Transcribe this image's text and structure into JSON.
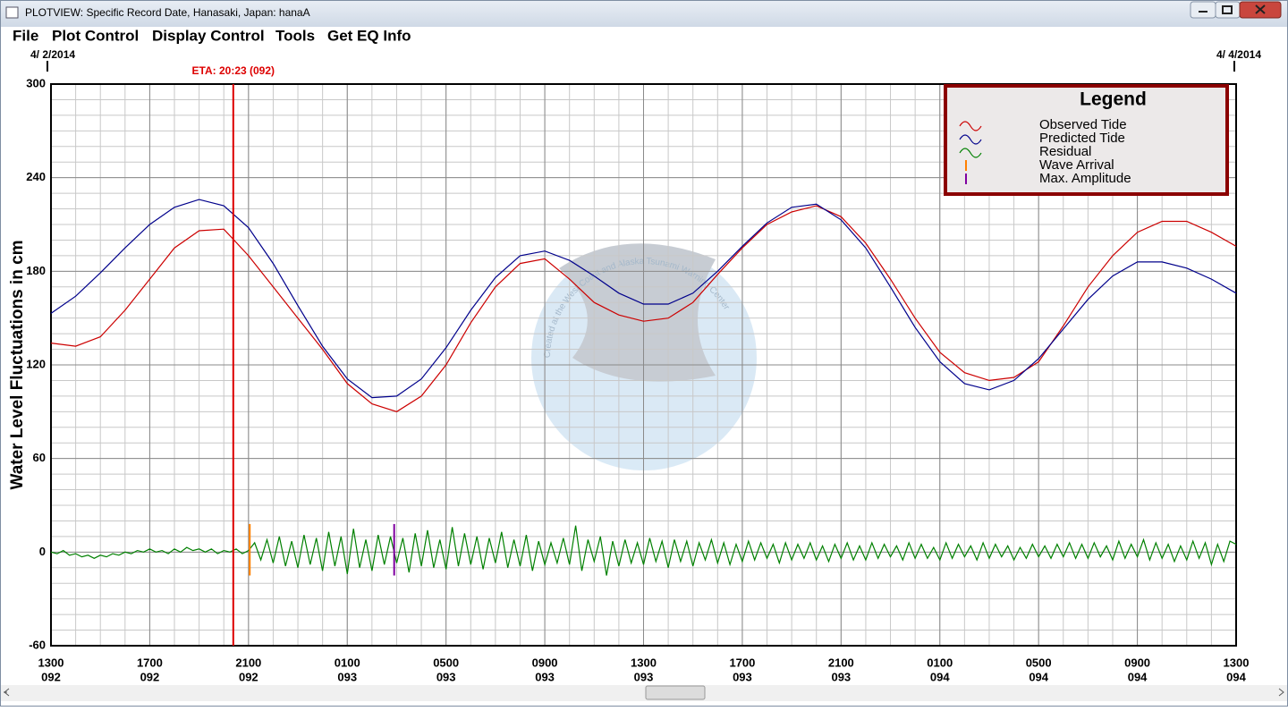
{
  "window": {
    "title": "PLOTVIEW: Specific Record Date, Hanasaki, Japan: hanaA",
    "menu": [
      "File",
      "Plot Control",
      "Display Control",
      "Tools",
      "Get EQ Info"
    ]
  },
  "chart_data": {
    "type": "line",
    "ylabel": "Water Level Fluctuations in cm",
    "date_labels": [
      "4/ 2/2014",
      "4/ 4/2014"
    ],
    "watermark": "Created at the West Coast and Alaska Tsunami Warning Center",
    "xlim": [
      0,
      48
    ],
    "ylim": [
      -60,
      300
    ],
    "xticks": [
      {
        "value": 0,
        "label": "1300"
      },
      {
        "value": 4,
        "label": "1700"
      },
      {
        "value": 8,
        "label": "2100"
      },
      {
        "value": 12,
        "label": "0100"
      },
      {
        "value": 16,
        "label": "0500"
      },
      {
        "value": 20,
        "label": "0900"
      },
      {
        "value": 24,
        "label": "1300"
      },
      {
        "value": 28,
        "label": "1700"
      },
      {
        "value": 32,
        "label": "2100"
      },
      {
        "value": 36,
        "label": "0100"
      },
      {
        "value": 40,
        "label": "0500"
      },
      {
        "value": 44,
        "label": "0900"
      },
      {
        "value": 48,
        "label": "1300"
      }
    ],
    "xtick_days": [
      "092",
      "092",
      "092",
      "093",
      "093",
      "093",
      "093",
      "093",
      "093",
      "094",
      "094",
      "094",
      "094"
    ],
    "yticks": [
      -60,
      0,
      60,
      120,
      180,
      240,
      300
    ],
    "minor_xticks": [
      0,
      1,
      2,
      3,
      4,
      5,
      6,
      7,
      8,
      9,
      10,
      11,
      12,
      13,
      14,
      15,
      16,
      17,
      18,
      19,
      20,
      21,
      22,
      23,
      24,
      25,
      26,
      27,
      28,
      29,
      30,
      31,
      32,
      33,
      34,
      35,
      36,
      37,
      38,
      39,
      40,
      41,
      42,
      43,
      44,
      45,
      46,
      47,
      48
    ],
    "minor_yticks": [
      -60,
      -50,
      -40,
      -30,
      -20,
      -10,
      0,
      10,
      20,
      30,
      40,
      50,
      60,
      70,
      80,
      90,
      100,
      110,
      120,
      130,
      140,
      150,
      160,
      170,
      180,
      190,
      200,
      210,
      220,
      230,
      240,
      250,
      260,
      270,
      280,
      290,
      300
    ],
    "grid": true,
    "x": [
      0,
      1,
      2,
      3,
      4,
      5,
      6,
      7,
      8,
      9,
      10,
      11,
      12,
      13,
      14,
      15,
      16,
      17,
      18,
      19,
      20,
      21,
      22,
      23,
      24,
      25,
      26,
      27,
      28,
      29,
      30,
      31,
      32,
      33,
      34,
      35,
      36,
      37,
      38,
      39,
      40,
      41,
      42,
      43,
      44,
      45,
      46,
      47,
      48
    ],
    "series": [
      {
        "name": "Observed Tide",
        "color": "#cc0000",
        "values": [
          134,
          132,
          138,
          155,
          175,
          195,
          206,
          207,
          190,
          170,
          150,
          130,
          108,
          95,
          90,
          100,
          120,
          147,
          170,
          185,
          188,
          175,
          160,
          152,
          148,
          150,
          160,
          178,
          195,
          210,
          218,
          222,
          215,
          198,
          175,
          150,
          128,
          115,
          110,
          112,
          122,
          145,
          170,
          190,
          205,
          212,
          212,
          205,
          196
        ]
      },
      {
        "name": "Predicted Tide",
        "color": "#00008b",
        "values": [
          153,
          164,
          179,
          195,
          210,
          221,
          226,
          222,
          208,
          185,
          158,
          132,
          111,
          99,
          100,
          111,
          131,
          155,
          176,
          190,
          193,
          187,
          177,
          166,
          159,
          159,
          166,
          180,
          196,
          211,
          221,
          223,
          213,
          195,
          170,
          144,
          122,
          108,
          104,
          110,
          124,
          143,
          162,
          177,
          186,
          186,
          182,
          175,
          166
        ]
      },
      {
        "name": "Residual",
        "color": "#008000",
        "x": [
          0,
          0.25,
          0.5,
          0.75,
          1,
          1.25,
          1.5,
          1.75,
          2,
          2.25,
          2.5,
          2.75,
          3,
          3.25,
          3.5,
          3.75,
          4,
          4.25,
          4.5,
          4.75,
          5,
          5.25,
          5.5,
          5.75,
          6,
          6.25,
          6.5,
          6.75,
          7,
          7.25,
          7.5,
          7.75,
          8,
          8.25,
          8.5,
          8.75,
          9,
          9.25,
          9.5,
          9.75,
          10,
          10.25,
          10.5,
          10.75,
          11,
          11.25,
          11.5,
          11.75,
          12,
          12.25,
          12.5,
          12.75,
          13,
          13.25,
          13.5,
          13.75,
          14,
          14.25,
          14.5,
          14.75,
          15,
          15.25,
          15.5,
          15.75,
          16,
          16.25,
          16.5,
          16.75,
          17,
          17.25,
          17.5,
          17.75,
          18,
          18.25,
          18.5,
          18.75,
          19,
          19.25,
          19.5,
          19.75,
          20,
          20.25,
          20.5,
          20.75,
          21,
          21.25,
          21.5,
          21.75,
          22,
          22.25,
          22.5,
          22.75,
          23,
          23.25,
          23.5,
          23.75,
          24,
          24.25,
          24.5,
          24.75,
          25,
          25.25,
          25.5,
          25.75,
          26,
          26.25,
          26.5,
          26.75,
          27,
          27.25,
          27.5,
          27.75,
          28,
          28.25,
          28.5,
          28.75,
          29,
          29.25,
          29.5,
          29.75,
          30,
          30.25,
          30.5,
          30.75,
          31,
          31.25,
          31.5,
          31.75,
          32,
          32.25,
          32.5,
          32.75,
          33,
          33.25,
          33.5,
          33.75,
          34,
          34.25,
          34.5,
          34.75,
          35,
          35.25,
          35.5,
          35.75,
          36,
          36.25,
          36.5,
          36.75,
          37,
          37.25,
          37.5,
          37.75,
          38,
          38.25,
          38.5,
          38.75,
          39,
          39.25,
          39.5,
          39.75,
          40,
          40.25,
          40.5,
          40.75,
          41,
          41.25,
          41.5,
          41.75,
          42,
          42.25,
          42.5,
          42.75,
          43,
          43.25,
          43.5,
          43.75,
          44,
          44.25,
          44.5,
          44.75,
          45,
          45.25,
          45.5,
          45.75,
          46,
          46.25,
          46.5,
          46.75,
          47,
          47.25,
          47.5,
          47.75,
          48
        ],
        "values": [
          0,
          -1,
          1,
          -2,
          -1,
          -3,
          -2,
          -4,
          -2,
          -3,
          -1,
          -2,
          0,
          -1,
          1,
          0,
          2,
          0,
          1,
          -1,
          2,
          0,
          3,
          1,
          2,
          0,
          2,
          -1,
          1,
          0,
          2,
          -1,
          1,
          6,
          -5,
          8,
          -7,
          10,
          -9,
          7,
          -10,
          11,
          -8,
          9,
          -12,
          13,
          -9,
          10,
          -14,
          15,
          -10,
          8,
          -12,
          11,
          -8,
          10,
          -7,
          9,
          -13,
          12,
          -9,
          14,
          -10,
          8,
          -11,
          16,
          -9,
          12,
          -8,
          10,
          -11,
          9,
          -7,
          13,
          -10,
          8,
          -9,
          11,
          -12,
          7,
          -8,
          6,
          -7,
          9,
          -8,
          17,
          -12,
          8,
          -6,
          10,
          -15,
          7,
          -9,
          8,
          -7,
          6,
          -8,
          9,
          -6,
          7,
          -10,
          8,
          -6,
          7,
          -9,
          6,
          -5,
          8,
          -7,
          6,
          -8,
          5,
          -6,
          7,
          -5,
          6,
          -4,
          5,
          -7,
          6,
          -5,
          5,
          -4,
          6,
          -5,
          4,
          -6,
          5,
          -4,
          6,
          -5,
          4,
          -5,
          6,
          -4,
          5,
          -3,
          4,
          -5,
          6,
          -4,
          5,
          -4,
          3,
          -5,
          6,
          -4,
          5,
          -3,
          4,
          -5,
          6,
          -4,
          5,
          -3,
          4,
          -5,
          3,
          -4,
          5,
          -3,
          4,
          -4,
          5,
          -3,
          6,
          -4,
          5,
          -4,
          6,
          -3,
          4,
          -5,
          7,
          -4,
          5,
          -3,
          8,
          -5,
          6,
          -4,
          5,
          -6,
          4,
          -5,
          7,
          -4,
          6,
          -8,
          5,
          -6,
          7,
          5
        ]
      }
    ],
    "markers": [
      {
        "label": "ETA: 20:23 (092)",
        "x": 7.383,
        "color": "#dd0000"
      }
    ],
    "events": [
      {
        "name": "Wave Arrival",
        "x": 8.05,
        "color": "#ff8000"
      },
      {
        "name": "Max. Amplitude",
        "x": 13.9,
        "color": "#8000a0"
      }
    ],
    "legend": {
      "title": "Legend",
      "position": "upper right"
    }
  }
}
